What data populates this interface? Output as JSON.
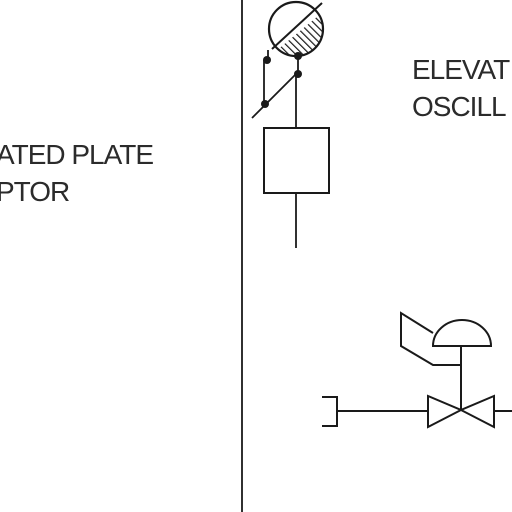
{
  "labels": {
    "left_line_1": "ATED PLATE",
    "left_line_2": "PTOR",
    "right_line_1": "ELEVAT",
    "right_line_2": "OSCILL"
  },
  "colors": {
    "ink": "#1a1a1a",
    "text": "#2b2b2b",
    "background": "#ffffff"
  }
}
